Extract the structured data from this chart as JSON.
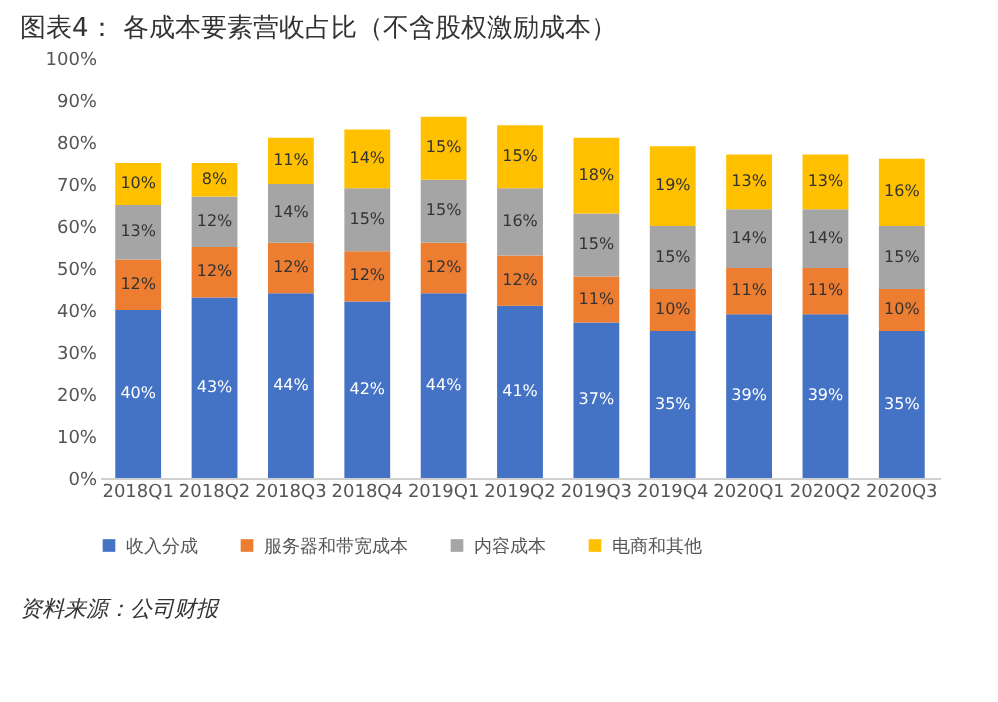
{
  "chart_data": {
    "type": "bar",
    "stacked": true,
    "title": "图表4：  各成本要素营收占比（不含股权激励成本）",
    "categories": [
      "2018Q1",
      "2018Q2",
      "2018Q3",
      "2018Q4",
      "2019Q1",
      "2019Q2",
      "2019Q3",
      "2019Q4",
      "2020Q1",
      "2020Q2",
      "2020Q3"
    ],
    "series": [
      {
        "name": "收入分成",
        "color": "#4472c4",
        "values": [
          40,
          43,
          44,
          42,
          44,
          41,
          37,
          35,
          39,
          39,
          35
        ],
        "value_labels": [
          "40%",
          "43%",
          "44%",
          "42%",
          "44%",
          "41%",
          "37%",
          "35%",
          "39%",
          "39%",
          "35%"
        ]
      },
      {
        "name": "服务器和带宽成本",
        "color": "#ed7d31",
        "values": [
          12,
          12,
          12,
          12,
          12,
          12,
          11,
          10,
          11,
          11,
          10
        ],
        "value_labels": [
          "12%",
          "12%",
          "12%",
          "12%",
          "12%",
          "12%",
          "11%",
          "10%",
          "11%",
          "11%",
          "10%"
        ]
      },
      {
        "name": "内容成本",
        "color": "#a5a5a5",
        "values": [
          13,
          12,
          14,
          15,
          15,
          16,
          15,
          15,
          14,
          14,
          15
        ],
        "value_labels": [
          "13%",
          "12%",
          "14%",
          "15%",
          "15%",
          "16%",
          "15%",
          "15%",
          "14%",
          "14%",
          "15%"
        ]
      },
      {
        "name": "电商和其他",
        "color": "#ffc000",
        "values": [
          10,
          8,
          11,
          14,
          15,
          15,
          18,
          19,
          13,
          13,
          16
        ],
        "value_labels": [
          "10%",
          "8%",
          "11%",
          "14%",
          "15%",
          "15%",
          "18%",
          "19%",
          "13%",
          "13%",
          "16%"
        ]
      }
    ],
    "ylim": [
      0,
      100
    ],
    "yticks": [
      {
        "value": 0,
        "label": "0%"
      },
      {
        "value": 10,
        "label": "10%"
      },
      {
        "value": 20,
        "label": "20%"
      },
      {
        "value": 30,
        "label": "30%"
      },
      {
        "value": 40,
        "label": "40%"
      },
      {
        "value": 50,
        "label": "50%"
      },
      {
        "value": 60,
        "label": "60%"
      },
      {
        "value": 70,
        "label": "70%"
      },
      {
        "value": 80,
        "label": "80%"
      },
      {
        "value": 90,
        "label": "90%"
      },
      {
        "value": 100,
        "label": "100%"
      }
    ],
    "grid": false,
    "legend": "bottom",
    "annotations": [
      "资料来源：公司财报"
    ]
  }
}
